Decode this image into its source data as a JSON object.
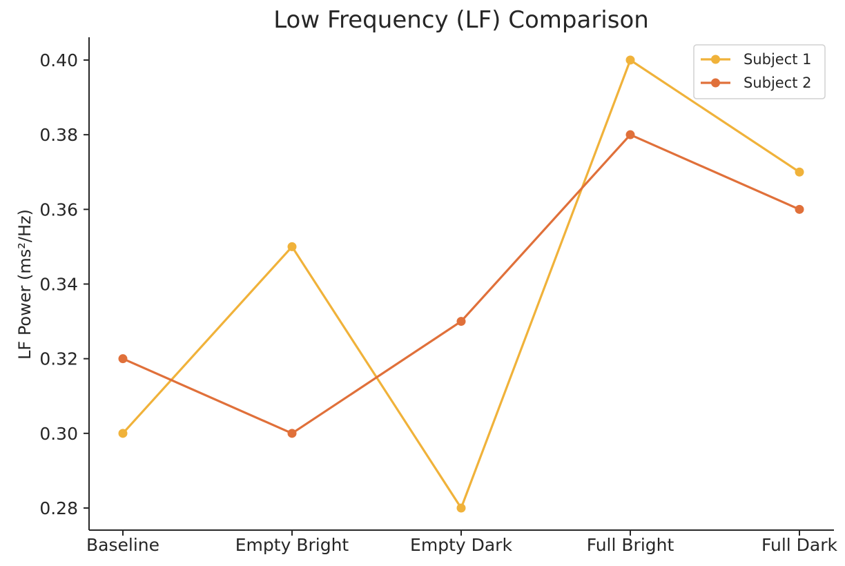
{
  "chart_data": {
    "type": "line",
    "title": "Low Frequency (LF) Comparison",
    "xlabel": "",
    "ylabel": "LF Power (ms²/Hz)",
    "categories": [
      "Baseline",
      "Empty Bright",
      "Empty Dark",
      "Full Bright",
      "Full Dark"
    ],
    "series": [
      {
        "name": "Subject 1",
        "values": [
          0.3,
          0.35,
          0.28,
          0.4,
          0.37
        ],
        "color": "#F0B23A"
      },
      {
        "name": "Subject 2",
        "values": [
          0.32,
          0.3,
          0.33,
          0.38,
          0.36
        ],
        "color": "#E0703A"
      }
    ],
    "ylim": [
      0.275,
      0.405
    ],
    "yticks": [
      "0.28",
      "0.30",
      "0.32",
      "0.34",
      "0.36",
      "0.38",
      "0.40"
    ],
    "grid": false,
    "legend_position": "top-right"
  }
}
